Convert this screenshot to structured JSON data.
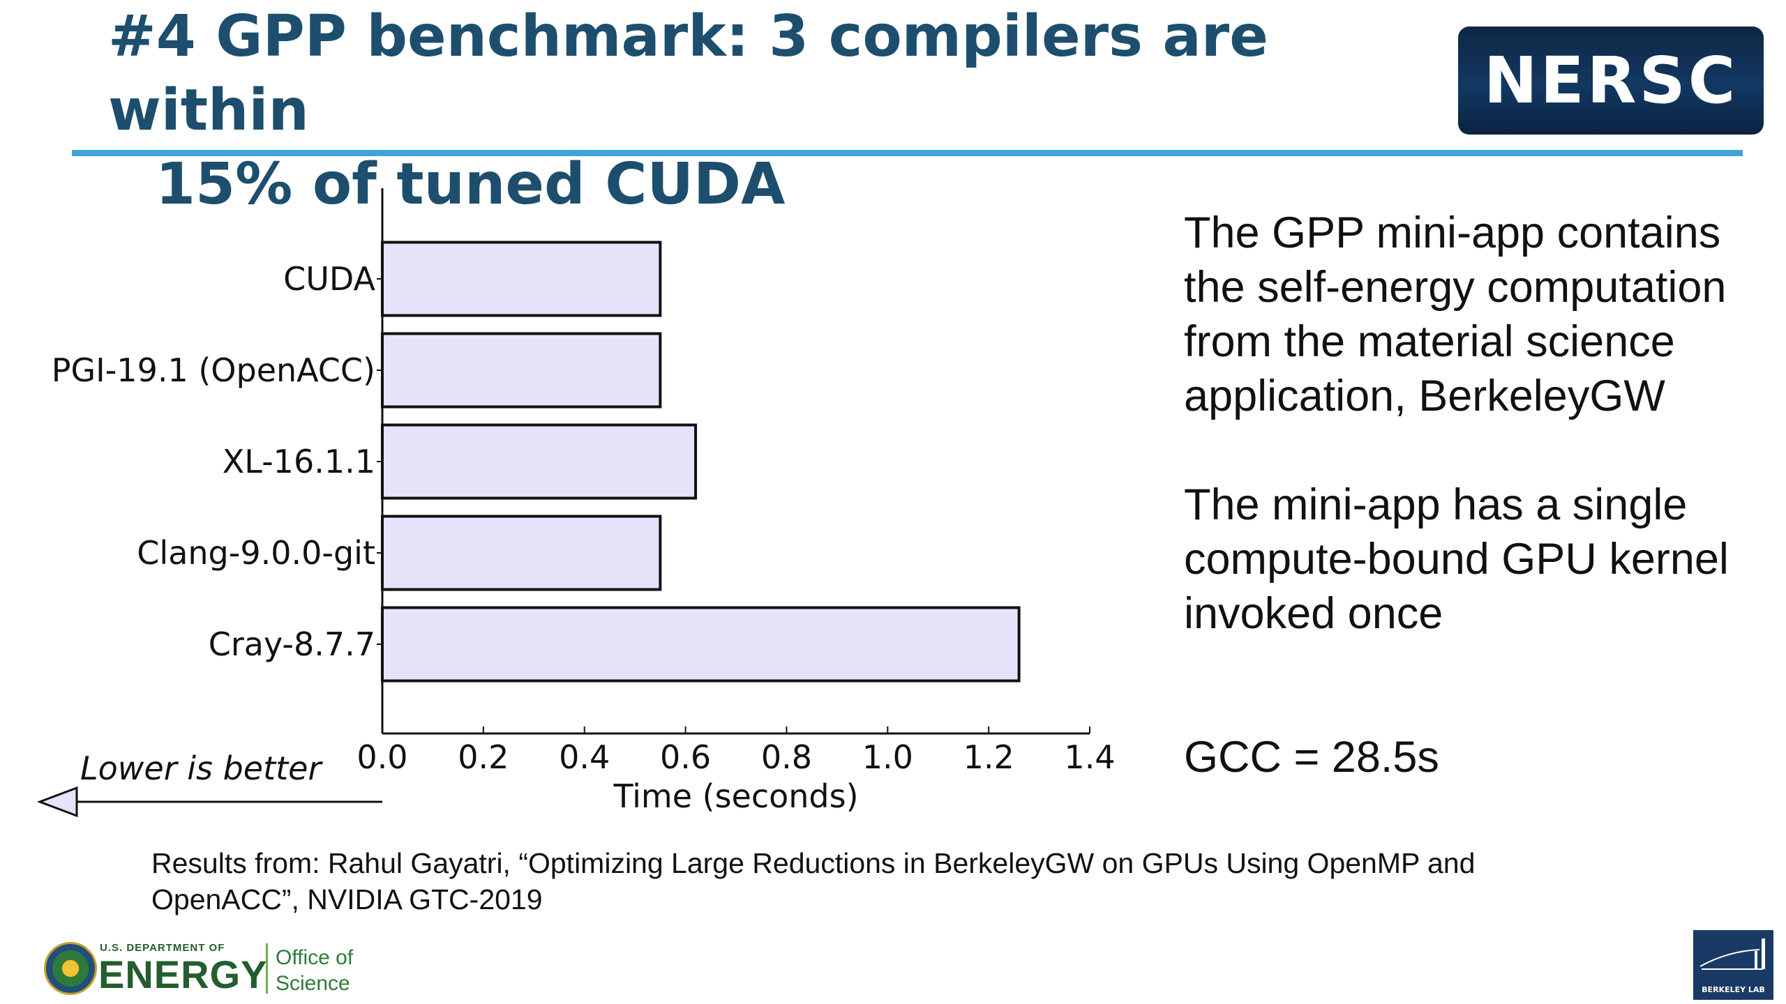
{
  "slide": {
    "title_line1": "#4 GPP benchmark: 3 compilers are within",
    "title_line2": "15% of tuned CUDA",
    "logo_text": "NERSC"
  },
  "chart_data": {
    "type": "bar",
    "orientation": "horizontal",
    "categories": [
      "CUDA",
      "PGI-19.1 (OpenACC)",
      "XL-16.1.1",
      "Clang-9.0.0-git",
      "Cray-8.7.7"
    ],
    "values": [
      0.55,
      0.55,
      0.62,
      0.55,
      1.26
    ],
    "xlabel": "Time (seconds)",
    "ylabel": "",
    "xlim": [
      0.0,
      1.4
    ],
    "xticks": [
      "0.0",
      "0.2",
      "0.4",
      "0.6",
      "0.8",
      "1.0",
      "1.2",
      "1.4"
    ],
    "bar_color": "#e6e4fa",
    "edge_color": "#111111",
    "grid": false,
    "annotation": "Lower is better"
  },
  "side_text": {
    "para1": "The GPP mini-app contains the self-energy computation from the material science application, BerkeleyGW",
    "para2": "The mini-app has a single compute-bound GPU kernel invoked once",
    "gcc": "GCC = 28.5s"
  },
  "citation": "Results from: Rahul Gayatri, “Optimizing Large Reductions in BerkeleyGW on GPUs Using OpenMP and OpenACC”, NVIDIA GTC-2019",
  "footer": {
    "doe_dept": "U.S. DEPARTMENT OF",
    "doe_energy": "ENERGY",
    "office_line1": "Office of",
    "office_line2": "Science",
    "berkeley": "BERKELEY LAB"
  }
}
